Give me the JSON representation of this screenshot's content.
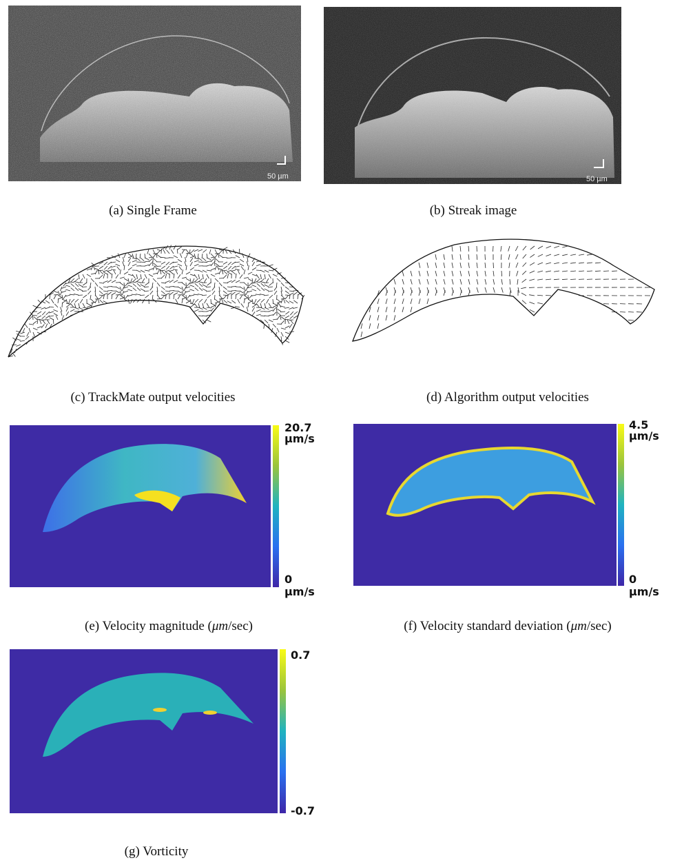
{
  "panels": [
    {
      "caption": "(a) Single Frame",
      "scale_bar": "50 µm"
    },
    {
      "caption": "(b) Streak image",
      "scale_bar": "50 µm"
    },
    {
      "caption": "(c) TrackMate output velocities"
    },
    {
      "caption": "(d) Algorithm output velocities"
    },
    {
      "caption": "(e) Velocity magnitude (",
      "caption_unit": "μm",
      "caption_end": "/sec)",
      "colorbar": {
        "max_label": "20.7",
        "max_unit": "µm/s",
        "min_label": "0",
        "min_unit": "µm/s"
      }
    },
    {
      "caption": "(f) Velocity standard deviation (",
      "caption_unit": "μm",
      "caption_end": "/sec)",
      "colorbar": {
        "max_label": "4.5",
        "max_unit": "µm/s",
        "min_label": "0",
        "min_unit": "µm/s"
      }
    },
    {
      "caption": "(g) Vorticity",
      "colorbar": {
        "max_label": "0.7",
        "min_label": "-0.7"
      }
    }
  ]
}
